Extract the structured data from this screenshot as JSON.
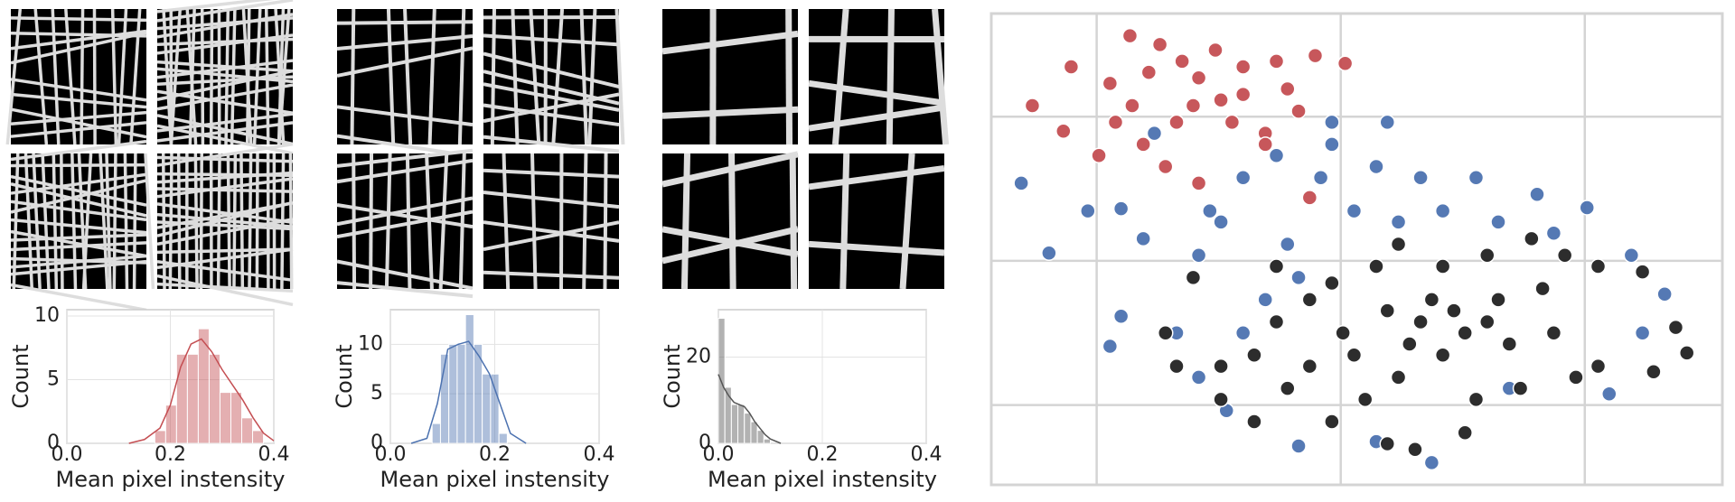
{
  "chart_data": [
    {
      "type": "histogram",
      "color": "#c44e52",
      "xlabel": "Mean pixel instensity",
      "ylabel": "Count",
      "bins": [
        0.17,
        0.191,
        0.212,
        0.233,
        0.254,
        0.275,
        0.296,
        0.317,
        0.338,
        0.359,
        0.38
      ],
      "values": [
        1,
        3,
        7,
        7,
        9,
        7,
        4,
        4,
        2,
        1
      ],
      "kde_x": [
        0.12,
        0.15,
        0.18,
        0.2,
        0.22,
        0.24,
        0.26,
        0.28,
        0.3,
        0.32,
        0.34,
        0.36,
        0.38,
        0.4
      ],
      "kde_values": [
        0,
        0.3,
        1.2,
        3,
        6,
        7.8,
        8.2,
        7.2,
        5.8,
        4.6,
        3.4,
        2,
        0.8,
        0.2
      ],
      "xlim": [
        0,
        0.4
      ],
      "ylim": [
        0,
        10.5
      ],
      "xticks": [
        {
          "value": 0,
          "label": "0.0"
        },
        0.2,
        0.4
      ],
      "yticks": [
        0,
        5,
        10
      ],
      "grid": true
    },
    {
      "type": "histogram",
      "color": "#4c72b0",
      "xlabel": "Mean pixel instensity",
      "ylabel": "Count",
      "bins": [
        0.08,
        0.096,
        0.112,
        0.128,
        0.144,
        0.16,
        0.176,
        0.192,
        0.208,
        0.224
      ],
      "values": [
        2,
        9,
        10,
        10,
        13,
        10,
        7,
        7,
        1
      ],
      "kde_x": [
        0.04,
        0.07,
        0.09,
        0.11,
        0.13,
        0.15,
        0.17,
        0.19,
        0.21,
        0.23,
        0.26
      ],
      "kde_values": [
        0,
        0.5,
        4,
        9.5,
        10,
        10.3,
        8.8,
        7,
        4,
        1,
        0
      ],
      "xlim": [
        0,
        0.4
      ],
      "ylim": [
        0,
        13.5
      ],
      "xticks": [
        {
          "value": 0,
          "label": "0.0"
        },
        0.2,
        0.4
      ],
      "yticks": [
        0,
        5,
        10
      ],
      "grid": true
    },
    {
      "type": "histogram",
      "color": "#555555",
      "xlabel": "Mean pixel instensity",
      "ylabel": "Count",
      "bins": [
        0,
        0.0125,
        0.025,
        0.0375,
        0.05,
        0.0625,
        0.075,
        0.0875,
        0.1
      ],
      "values": [
        29,
        13,
        9,
        9,
        7,
        5,
        3,
        1
      ],
      "kde_x": [
        0,
        0.01,
        0.02,
        0.03,
        0.04,
        0.05,
        0.06,
        0.07,
        0.08,
        0.09,
        0.1,
        0.12
      ],
      "kde_values": [
        16,
        13,
        11,
        9.5,
        9,
        8.5,
        7,
        5,
        3.5,
        2,
        1,
        0
      ],
      "xlim": [
        0,
        0.4
      ],
      "ylim": [
        0,
        31
      ],
      "xticks": [
        {
          "value": 0,
          "label": "0.0"
        },
        0.2,
        0.4
      ],
      "yticks": [
        0,
        20
      ],
      "grid": true
    },
    {
      "type": "scatter",
      "xlim": [
        0,
        659
      ],
      "ylim": [
        0,
        425
      ],
      "xticks": [
        95,
        315,
        535
      ],
      "yticks": [
        72,
        202,
        332
      ],
      "grid": true,
      "series": [
        {
          "color": "#4c72b0",
          "x": [
            27,
            52,
            117,
            137,
            87,
            187,
            207,
            227,
            257,
            307,
            347,
            387,
            437,
            492,
            537,
            577,
            607,
            587,
            407,
            367,
            327,
            457,
            507,
            277,
            247,
            227,
            167,
            117,
            107,
            187,
            212,
            277,
            347,
            397,
            467,
            557,
            307,
            267,
            357,
            147,
            197,
            297
          ],
          "y": [
            272,
            209,
            249,
            222,
            247,
            207,
            237,
            277,
            297,
            307,
            287,
            277,
            277,
            262,
            250,
            207,
            172,
            137,
            247,
            237,
            247,
            237,
            227,
            187,
            167,
            137,
            137,
            152,
            125,
            97,
            67,
            35,
            39,
            20,
            87,
            82,
            327,
            217,
            327,
            317,
            247,
            277
          ]
        },
        {
          "color": "#c44e52",
          "x": [
            37,
            65,
            125,
            152,
            187,
            207,
            167,
            137,
            227,
            257,
            292,
            319,
            277,
            247,
            107,
            97,
            157,
            187,
            287,
            247,
            172,
            202,
            217,
            127,
            142,
            182,
            227,
            112,
            72,
            267
          ],
          "y": [
            342,
            319,
            405,
            397,
            367,
            347,
            327,
            307,
            377,
            382,
            387,
            380,
            337,
            317,
            362,
            297,
            287,
            272,
            259,
            307,
            382,
            392,
            327,
            342,
            372,
            342,
            352,
            327,
            377,
            357
          ]
        },
        {
          "color": "#222222",
          "x": [
            182,
            157,
            167,
            207,
            237,
            257,
            287,
            307,
            347,
            367,
            407,
            447,
            487,
            517,
            547,
            587,
            617,
            627,
            597,
            547,
            507,
            467,
            427,
            387,
            407,
            447,
            377,
            367,
            337,
            307,
            357,
            382,
            427,
            437,
            477,
            527,
            317,
            267,
            207,
            237,
            287,
            397,
            417,
            457,
            497,
            357,
            257,
            327
          ],
          "y": [
            187,
            137,
            107,
            107,
            117,
            147,
            167,
            182,
            197,
            217,
            197,
            207,
            222,
            207,
            197,
            192,
            142,
            119,
            102,
            107,
            137,
            127,
            137,
            147,
            117,
            147,
            127,
            97,
            77,
            57,
            37,
            32,
            47,
            77,
            87,
            97,
            137,
            87,
            77,
            57,
            107,
            167,
            157,
            167,
            177,
            157,
            197,
            117
          ]
        }
      ]
    }
  ]
}
